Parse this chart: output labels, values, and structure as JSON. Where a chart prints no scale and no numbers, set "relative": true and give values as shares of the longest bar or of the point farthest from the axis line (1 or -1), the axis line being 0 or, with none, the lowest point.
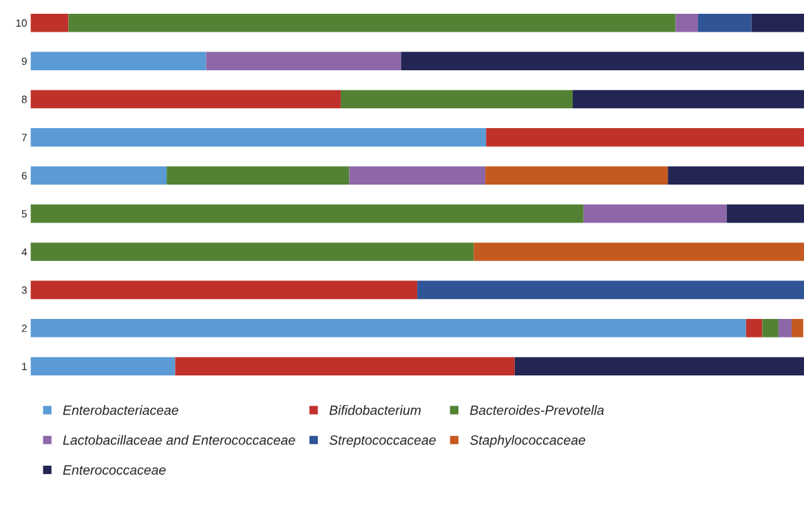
{
  "chart_data": {
    "type": "bar",
    "orientation": "horizontal",
    "stacked": true,
    "relative": true,
    "legend": "bottom",
    "grid": false,
    "categories": [
      "10",
      "9",
      "8",
      "7",
      "6",
      "5",
      "4",
      "3",
      "2",
      "1"
    ],
    "series": [
      {
        "name": "Enterobacteriaceae",
        "color": "#5b9bd5",
        "values": [
          null,
          0.227,
          null,
          0.589,
          0.176,
          null,
          null,
          null,
          0.925,
          0.187
        ]
      },
      {
        "name": "Bifidobacterium",
        "color": "#c0312b",
        "values": [
          0.049,
          null,
          0.401,
          0.411,
          null,
          null,
          null,
          0.5,
          0.021,
          0.439
        ]
      },
      {
        "name": "Bacteroides-Prevotella",
        "color": "#548235",
        "values": [
          0.785,
          null,
          0.3,
          null,
          0.236,
          0.715,
          0.573,
          null,
          0.021,
          null
        ]
      },
      {
        "name": "Lactobacillaceae and Enterococcaceae",
        "color": "#8e67a9",
        "values": [
          0.029,
          0.252,
          null,
          null,
          0.176,
          0.185,
          null,
          null,
          0.017,
          null
        ]
      },
      {
        "name": "Streptococcaceae",
        "color": "#2f5597",
        "values": [
          0.069,
          null,
          null,
          null,
          null,
          null,
          null,
          0.5,
          null,
          null
        ]
      },
      {
        "name": "Staphylococcaceae",
        "color": "#c55a21",
        "values": [
          null,
          null,
          null,
          null,
          0.236,
          null,
          0.427,
          null,
          0.015,
          null
        ]
      },
      {
        "name": "Enterococcaceae",
        "color": "#232653",
        "values": [
          0.068,
          0.521,
          0.299,
          null,
          0.176,
          0.1,
          null,
          null,
          null,
          0.374
        ]
      }
    ]
  }
}
